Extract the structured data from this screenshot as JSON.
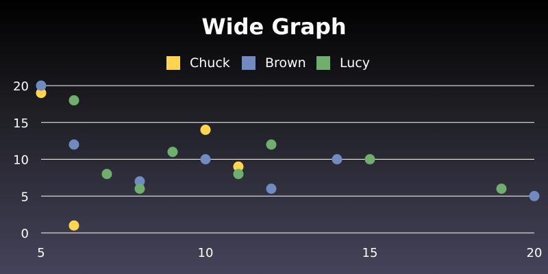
{
  "chart_data": {
    "type": "scatter",
    "title": "Wide Graph",
    "xlabel": "",
    "ylabel": "",
    "xlim": [
      5,
      20
    ],
    "ylim": [
      0,
      20
    ],
    "xticks": [
      5,
      10,
      15,
      20
    ],
    "yticks": [
      0,
      5,
      10,
      15,
      20
    ],
    "grid": "horizontal",
    "legend_position": "top-center",
    "series": [
      {
        "name": "Chuck",
        "color": "#ffd54f",
        "points": [
          [
            5,
            19
          ],
          [
            6,
            1
          ],
          [
            10,
            14
          ],
          [
            11,
            9
          ]
        ]
      },
      {
        "name": "Brown",
        "color": "#6f8bbf",
        "points": [
          [
            5,
            20
          ],
          [
            6,
            12
          ],
          [
            8,
            7
          ],
          [
            10,
            10
          ],
          [
            12,
            6
          ],
          [
            14,
            10
          ],
          [
            20,
            5
          ]
        ]
      },
      {
        "name": "Lucy",
        "color": "#6fae6c",
        "points": [
          [
            6,
            18
          ],
          [
            7,
            8
          ],
          [
            8,
            6
          ],
          [
            9,
            11
          ],
          [
            11,
            8
          ],
          [
            12,
            12
          ],
          [
            15,
            10
          ],
          [
            19,
            6
          ]
        ]
      }
    ]
  }
}
